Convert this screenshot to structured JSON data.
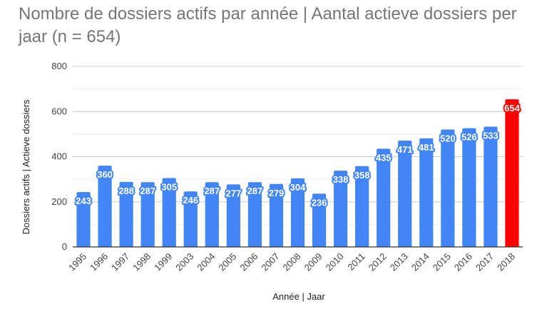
{
  "chart_data": {
    "type": "bar",
    "title": "Nombre de dossiers actifs par année | Aantal actieve dossiers per jaar (n = 654)",
    "xlabel": "Année | Jaar",
    "ylabel": "Dossiers actifs | Actieve dossiers",
    "ylim": [
      0,
      800
    ],
    "yticks": [
      0,
      200,
      400,
      600,
      800
    ],
    "grid": true,
    "categories": [
      "1995",
      "1996",
      "1997",
      "1998",
      "1999",
      "2003",
      "2004",
      "2005",
      "2006",
      "2007",
      "2008",
      "2009",
      "2010",
      "2011",
      "2012",
      "2013",
      "2014",
      "2015",
      "2016",
      "2017",
      "2018"
    ],
    "values": [
      243,
      360,
      288,
      287,
      305,
      246,
      287,
      277,
      287,
      279,
      304,
      236,
      338,
      358,
      435,
      471,
      481,
      520,
      526,
      533,
      654
    ],
    "colors": {
      "bar": "#4285f4",
      "highlight": "#ff0000",
      "highlight_category": "2018"
    }
  }
}
